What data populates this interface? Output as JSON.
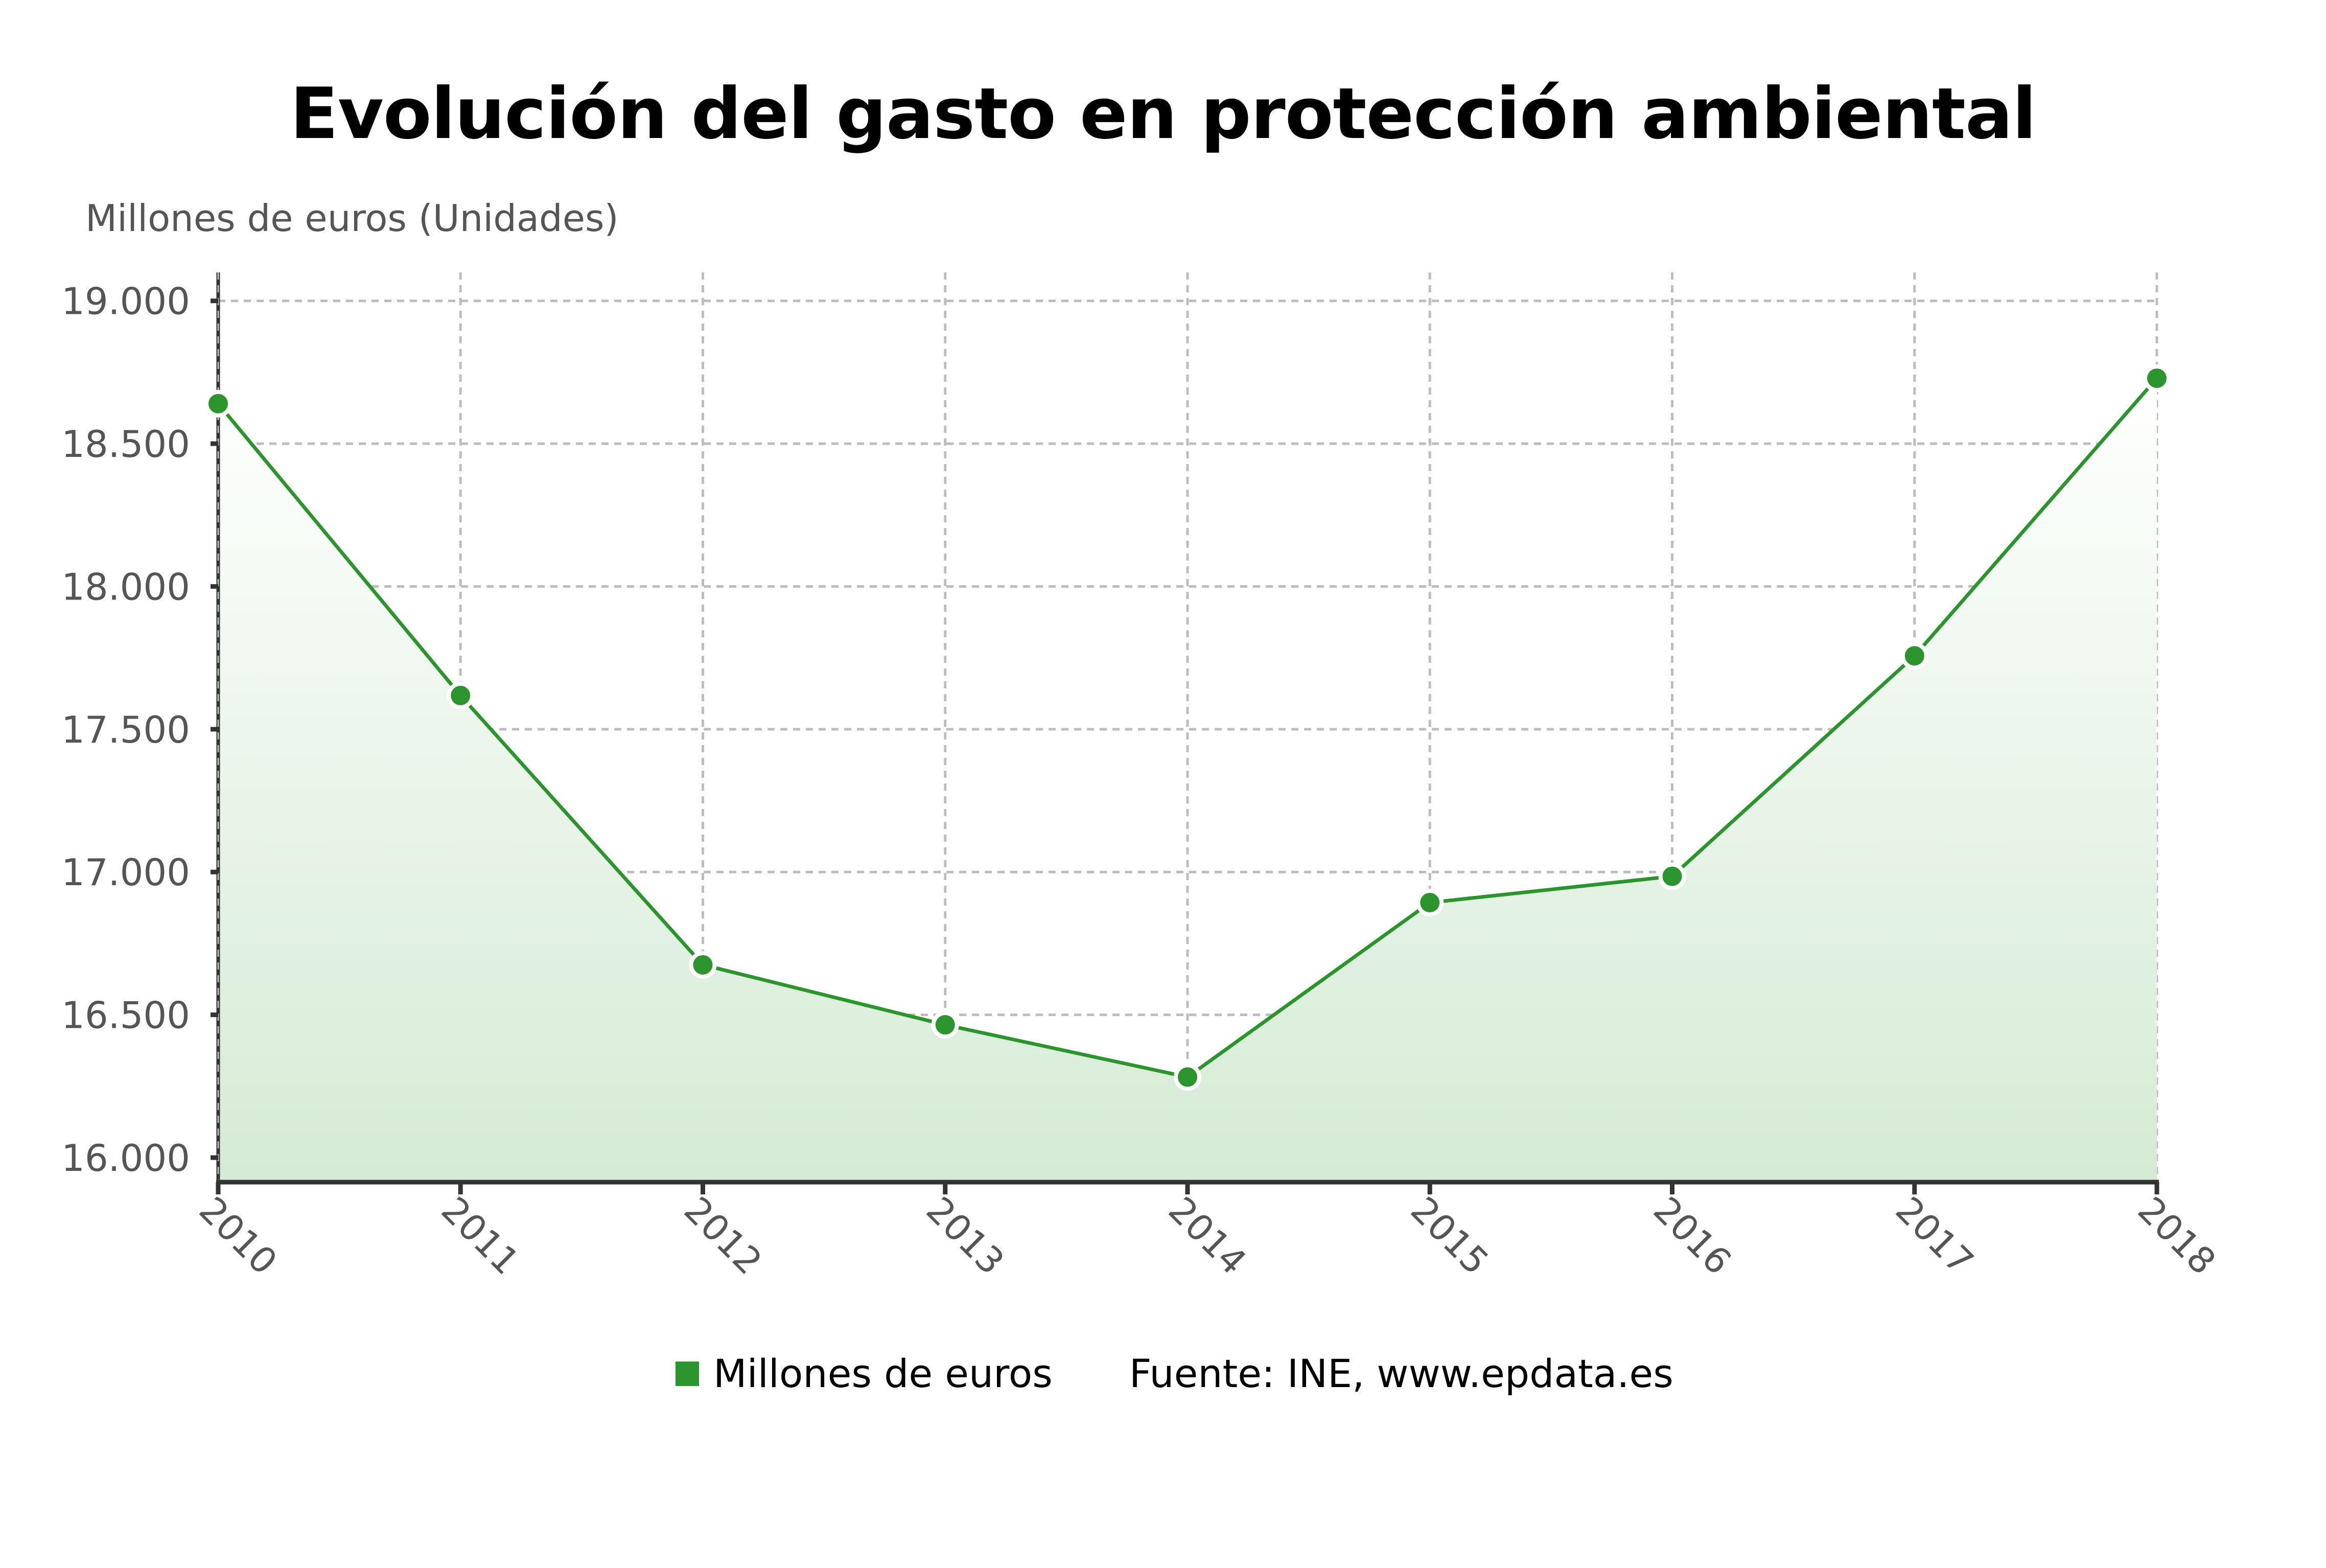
{
  "title": "Evolución del gasto en protección ambiental",
  "y_axis_label": "Millones de euros (Unidades)",
  "legend": {
    "series_label": "Millones de euros",
    "source": "Fuente: INE, www.epdata.es"
  },
  "colors": {
    "line": "#2c942c",
    "fill_bottom": "#d5ebd5",
    "fill_top": "#ffffff",
    "grid": "#bdbdbd",
    "axis": "#333333",
    "tick_text": "#555555"
  },
  "chart_data": {
    "type": "area",
    "title": "Evolución del gasto en protección ambiental",
    "xlabel": "",
    "ylabel": "Millones de euros (Unidades)",
    "categories": [
      "2010",
      "2011",
      "2012",
      "2013",
      "2014",
      "2015",
      "2016",
      "2017",
      "2018"
    ],
    "series": [
      {
        "name": "Millones de euros",
        "values": [
          18640,
          17618,
          16675,
          16465,
          16282,
          16893,
          16985,
          17757,
          18729
        ]
      }
    ],
    "ylim": [
      16000,
      19000
    ],
    "yticks": [
      16000,
      16500,
      17000,
      17500,
      18000,
      18500,
      19000
    ],
    "ytick_labels": [
      "16.000",
      "16.500",
      "17.000",
      "17.500",
      "18.000",
      "18.500",
      "19.000"
    ],
    "grid": true,
    "legend_position": "bottom",
    "source": "Fuente: INE, www.epdata.es"
  }
}
